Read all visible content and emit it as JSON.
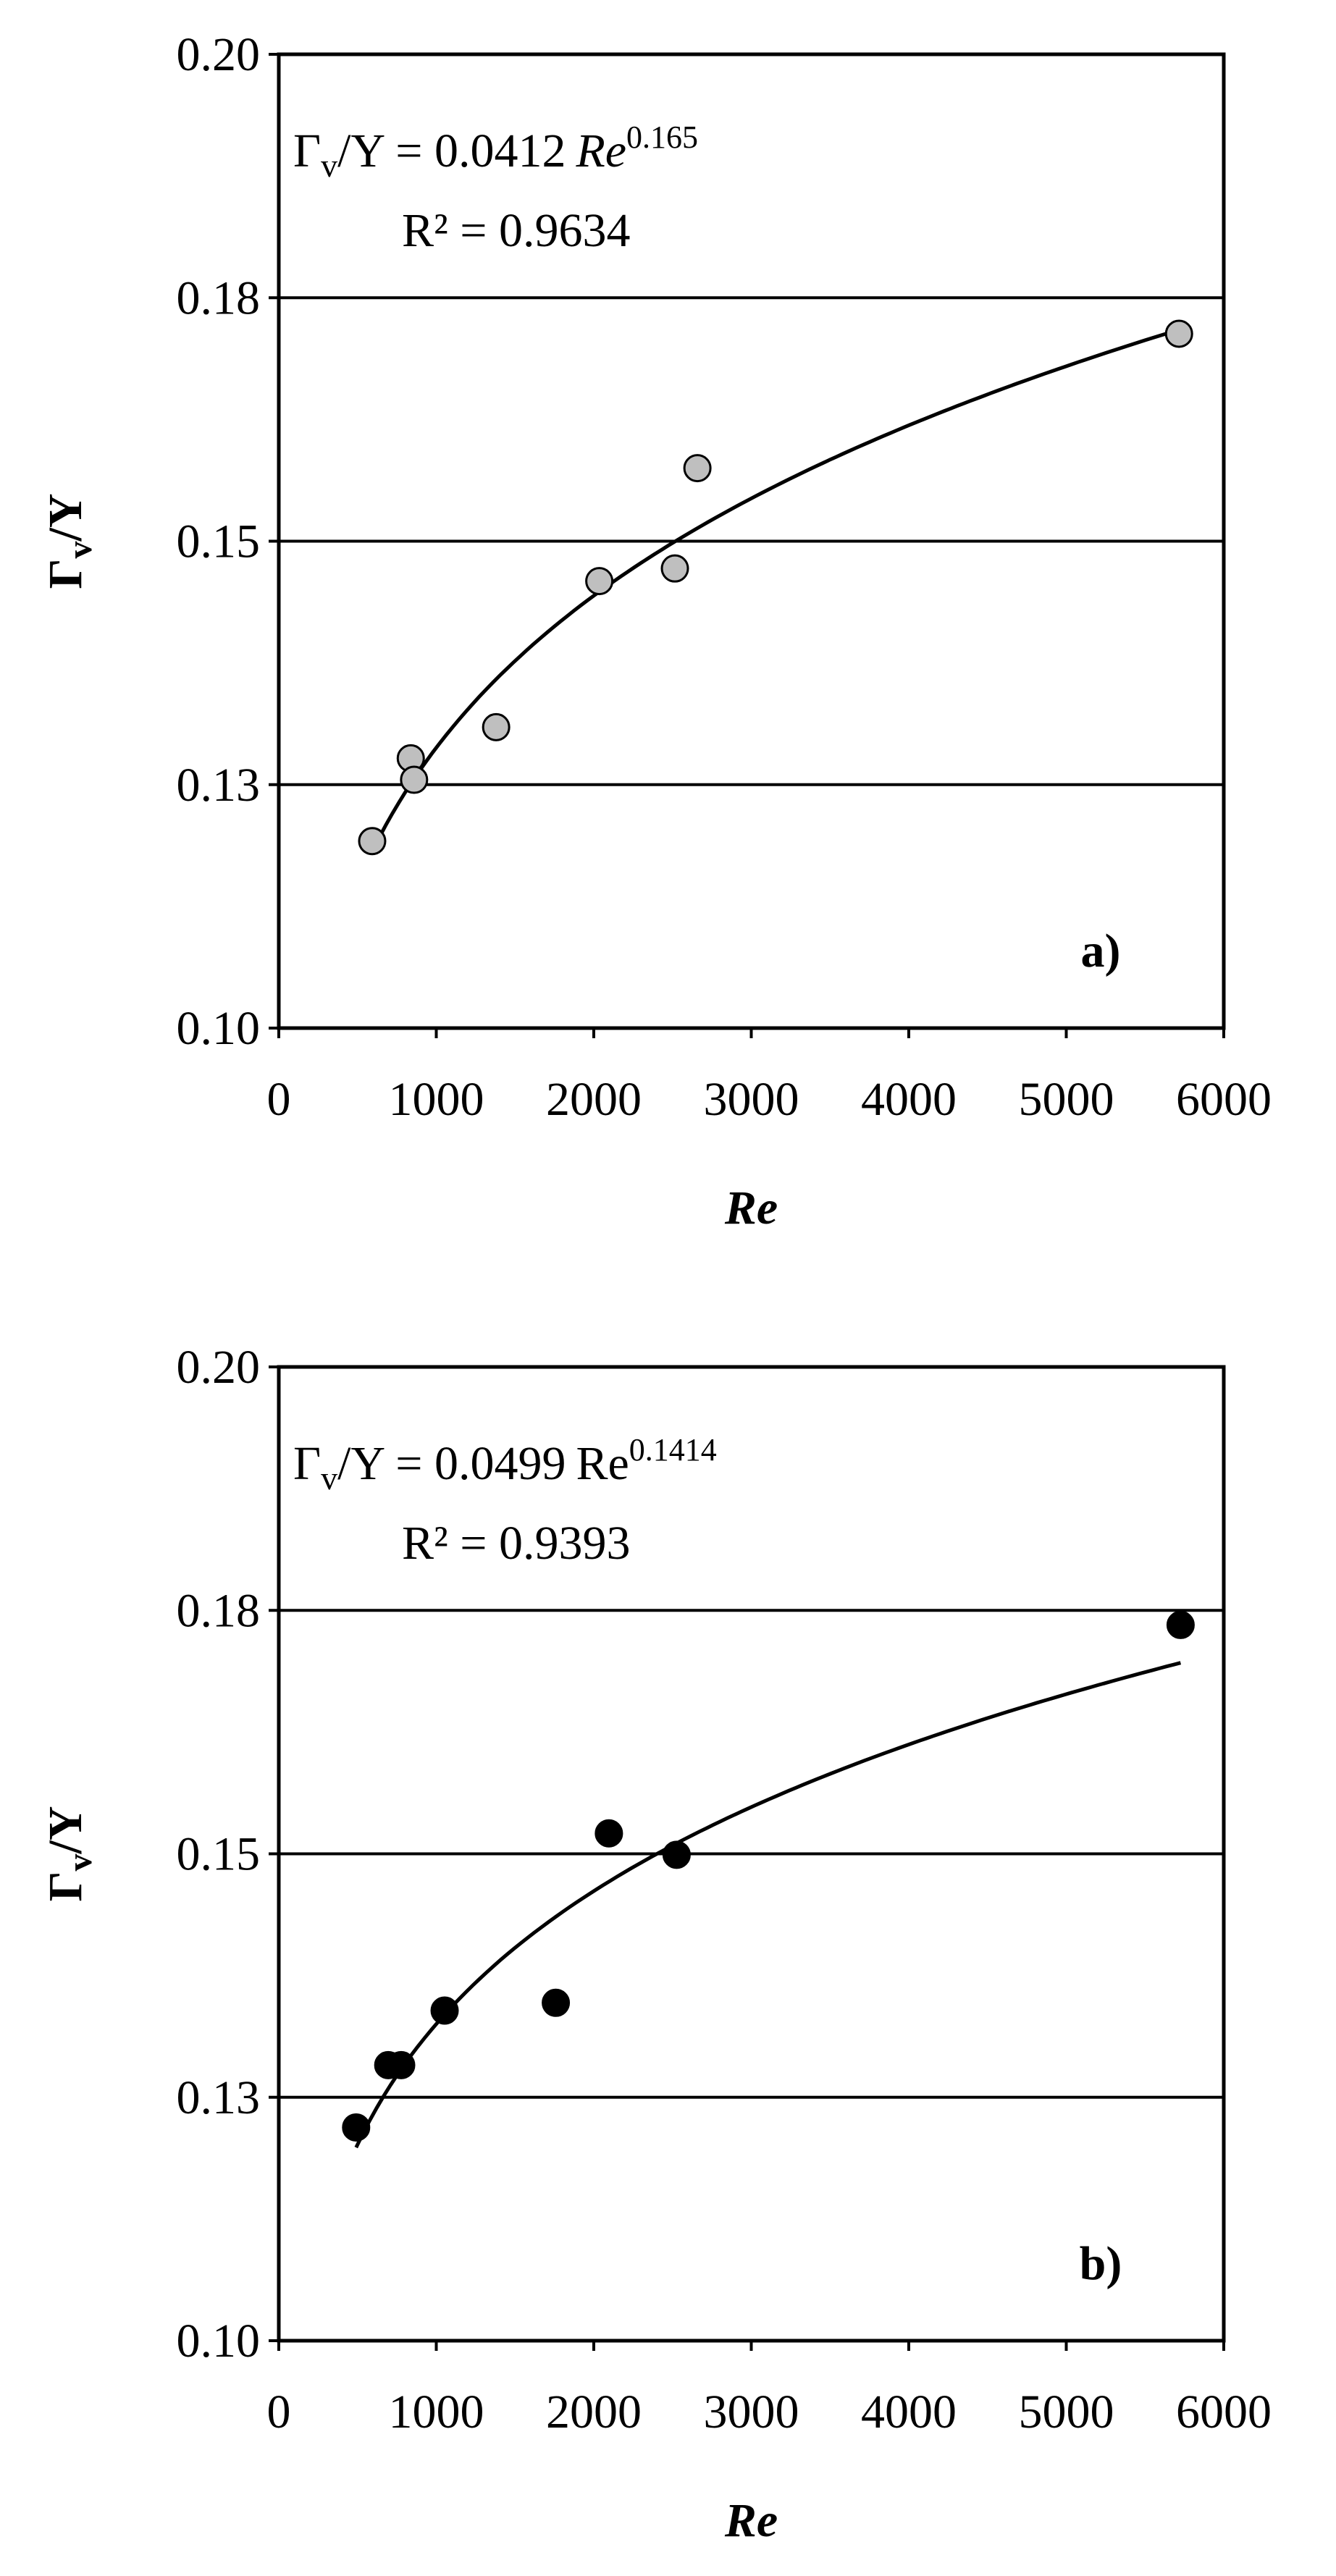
{
  "chart_data": [
    {
      "type": "scatter",
      "x": [
        593,
        838,
        859,
        1380,
        2035,
        2515,
        2658,
        5716
      ],
      "values": [
        0.1192,
        0.1277,
        0.1255,
        0.1309,
        0.1459,
        0.1472,
        0.1575,
        0.1713
      ],
      "color": "#bfbfbf",
      "xlim": [
        0,
        6000
      ],
      "xticks": [
        0,
        1000,
        2000,
        3000,
        4000,
        5000,
        6000
      ],
      "ylim": [
        0.1,
        0.2
      ],
      "yticks": [
        {
          "value": 0.1,
          "label": "0.10"
        },
        {
          "value": 0.125,
          "label": "0.13"
        },
        0.15,
        {
          "value": 0.175,
          "label": "0.18"
        },
        {
          "value": 0.2,
          "label": "0.20"
        }
      ],
      "grid": true,
      "xlabel": "Re",
      "ylabel": {
        "main": "Γ",
        "sub": "v",
        "rest": "/Y"
      },
      "trendline": {
        "lhs": "Γ",
        "lhs_sub": "v",
        "eq": "/Y = ",
        "coef": 0.0412,
        "var": "Re",
        "var_italic": true,
        "exp": 0.165,
        "r2_label": "R² = ",
        "r2": 0.9634
      },
      "panel": "a)"
    },
    {
      "type": "scatter",
      "x": [
        491,
        695,
        777,
        1053,
        1759,
        2096,
        2526,
        5726
      ],
      "values": [
        0.1219,
        0.1283,
        0.1283,
        0.1339,
        0.1347,
        0.1521,
        0.1499,
        0.1735
      ],
      "color": "#000000",
      "xlim": [
        0,
        6000
      ],
      "xticks": [
        0,
        1000,
        2000,
        3000,
        4000,
        5000,
        6000
      ],
      "ylim": [
        0.1,
        0.2
      ],
      "yticks": [
        {
          "value": 0.1,
          "label": "0.10"
        },
        {
          "value": 0.125,
          "label": "0.13"
        },
        0.15,
        {
          "value": 0.175,
          "label": "0.18"
        },
        {
          "value": 0.2,
          "label": "0.20"
        }
      ],
      "grid": true,
      "xlabel": "Re",
      "ylabel": {
        "main": "Γ",
        "sub": "v",
        "rest": "/Y"
      },
      "trendline": {
        "lhs": "Γ",
        "lhs_sub": "v",
        "eq": "/Y = ",
        "coef": 0.0499,
        "var": "Re",
        "var_italic": false,
        "exp": 0.1414,
        "r2_label": "R² = ",
        "r2": 0.9393
      },
      "panel": "b)"
    }
  ]
}
